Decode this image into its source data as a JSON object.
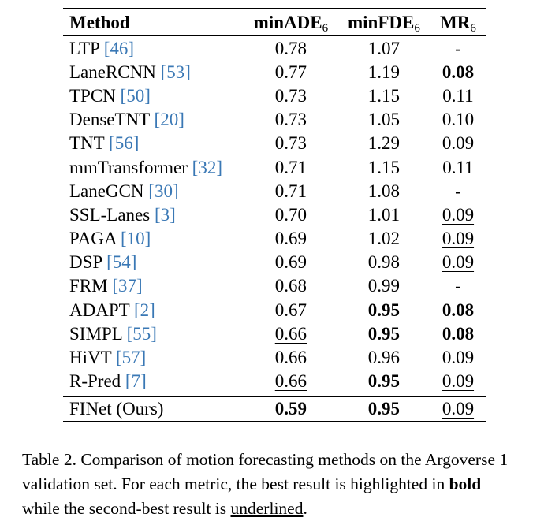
{
  "table": {
    "headers": {
      "method": "Method",
      "ade": {
        "base": "minADE",
        "sub": "6"
      },
      "fde": {
        "base": "minFDE",
        "sub": "6"
      },
      "mr": {
        "base": "MR",
        "sub": "6"
      }
    },
    "rows": [
      {
        "method": "LTP",
        "ref": "[46]",
        "ade": "0.78",
        "fde": "1.07",
        "mr": "-",
        "ade_style": "",
        "fde_style": "",
        "mr_style": ""
      },
      {
        "method": "LaneRCNN",
        "ref": "[53]",
        "ade": "0.77",
        "fde": "1.19",
        "mr": "0.08",
        "ade_style": "",
        "fde_style": "",
        "mr_style": "best"
      },
      {
        "method": "TPCN",
        "ref": "[50]",
        "ade": "0.73",
        "fde": "1.15",
        "mr": "0.11",
        "ade_style": "",
        "fde_style": "",
        "mr_style": ""
      },
      {
        "method": "DenseTNT",
        "ref": "[20]",
        "ade": "0.73",
        "fde": "1.05",
        "mr": "0.10",
        "ade_style": "",
        "fde_style": "",
        "mr_style": ""
      },
      {
        "method": "TNT",
        "ref": "[56]",
        "ade": "0.73",
        "fde": "1.29",
        "mr": "0.09",
        "ade_style": "",
        "fde_style": "",
        "mr_style": ""
      },
      {
        "method": "mmTransformer",
        "ref": "[32]",
        "ade": "0.71",
        "fde": "1.15",
        "mr": "0.11",
        "ade_style": "",
        "fde_style": "",
        "mr_style": ""
      },
      {
        "method": "LaneGCN",
        "ref": "[30]",
        "ade": "0.71",
        "fde": "1.08",
        "mr": "-",
        "ade_style": "",
        "fde_style": "",
        "mr_style": ""
      },
      {
        "method": "SSL-Lanes",
        "ref": "[3]",
        "ade": "0.70",
        "fde": "1.01",
        "mr": "0.09",
        "ade_style": "",
        "fde_style": "",
        "mr_style": "second"
      },
      {
        "method": "PAGA",
        "ref": "[10]",
        "ade": "0.69",
        "fde": "1.02",
        "mr": "0.09",
        "ade_style": "",
        "fde_style": "",
        "mr_style": "second"
      },
      {
        "method": "DSP",
        "ref": "[54]",
        "ade": "0.69",
        "fde": "0.98",
        "mr": "0.09",
        "ade_style": "",
        "fde_style": "",
        "mr_style": "second"
      },
      {
        "method": "FRM",
        "ref": "[37]",
        "ade": "0.68",
        "fde": "0.99",
        "mr": "-",
        "ade_style": "",
        "fde_style": "",
        "mr_style": ""
      },
      {
        "method": "ADAPT",
        "ref": "[2]",
        "ade": "0.67",
        "fde": "0.95",
        "mr": "0.08",
        "ade_style": "",
        "fde_style": "best",
        "mr_style": "best"
      },
      {
        "method": "SIMPL",
        "ref": "[55]",
        "ade": "0.66",
        "fde": "0.95",
        "mr": "0.08",
        "ade_style": "second",
        "fde_style": "best",
        "mr_style": "best"
      },
      {
        "method": "HiVT",
        "ref": "[57]",
        "ade": "0.66",
        "fde": "0.96",
        "mr": "0.09",
        "ade_style": "second",
        "fde_style": "second",
        "mr_style": "second"
      },
      {
        "method": "R-Pred",
        "ref": "[7]",
        "ade": "0.66",
        "fde": "0.95",
        "mr": "0.09",
        "ade_style": "second",
        "fde_style": "best",
        "mr_style": "second"
      }
    ],
    "ours": {
      "method": "FINet (Ours)",
      "ade": "0.59",
      "fde": "0.95",
      "mr": "0.09",
      "ade_style": "best",
      "fde_style": "best",
      "mr_style": "second"
    }
  },
  "caption": {
    "part1": "Table 2. Comparison of motion forecasting methods on the Argoverse 1 validation set. For each metric, the best result is highlighted in ",
    "bold_word": "bold",
    "part2": " while the second-best result is ",
    "underline_word": "underlined",
    "part3": "."
  }
}
